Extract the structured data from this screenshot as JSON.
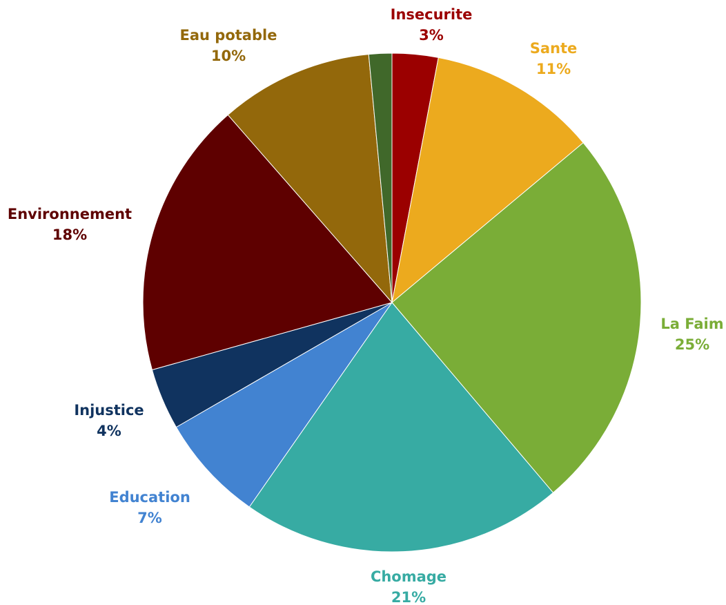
{
  "chart_data": {
    "type": "pie",
    "title": "",
    "slices": [
      {
        "label": "Insecurite",
        "value": 3,
        "value_label": "3%",
        "color": "#9b0000"
      },
      {
        "label": "Sante",
        "value": 11,
        "value_label": "11%",
        "color": "#ecaa1e"
      },
      {
        "label": "La Faim",
        "value": 25,
        "value_label": "25%",
        "color": "#7aad37"
      },
      {
        "label": "Chomage",
        "value": 21,
        "value_label": "21%",
        "color": "#37aba3"
      },
      {
        "label": "Education",
        "value": 7,
        "value_label": "7%",
        "color": "#4283d1"
      },
      {
        "label": "Injustice",
        "value": 4,
        "value_label": "4%",
        "color": "#10335f"
      },
      {
        "label": "Environnement",
        "value": 18,
        "value_label": "18%",
        "color": "#5e0000"
      },
      {
        "label": "Eau potable",
        "value": 10,
        "value_label": "10%",
        "color": "#93680b"
      },
      {
        "label": "",
        "value": 1.5,
        "value_label": "",
        "color": "#40682a"
      }
    ],
    "label_colors": {
      "Insecurite": "#9b0000",
      "Sante": "#ecaa1e",
      "La Faim": "#7aad37",
      "Chomage": "#37aba3",
      "Education": "#4283d1",
      "Injustice": "#10335f",
      "Environnement": "#5e0000",
      "Eau potable": "#93680b"
    }
  }
}
